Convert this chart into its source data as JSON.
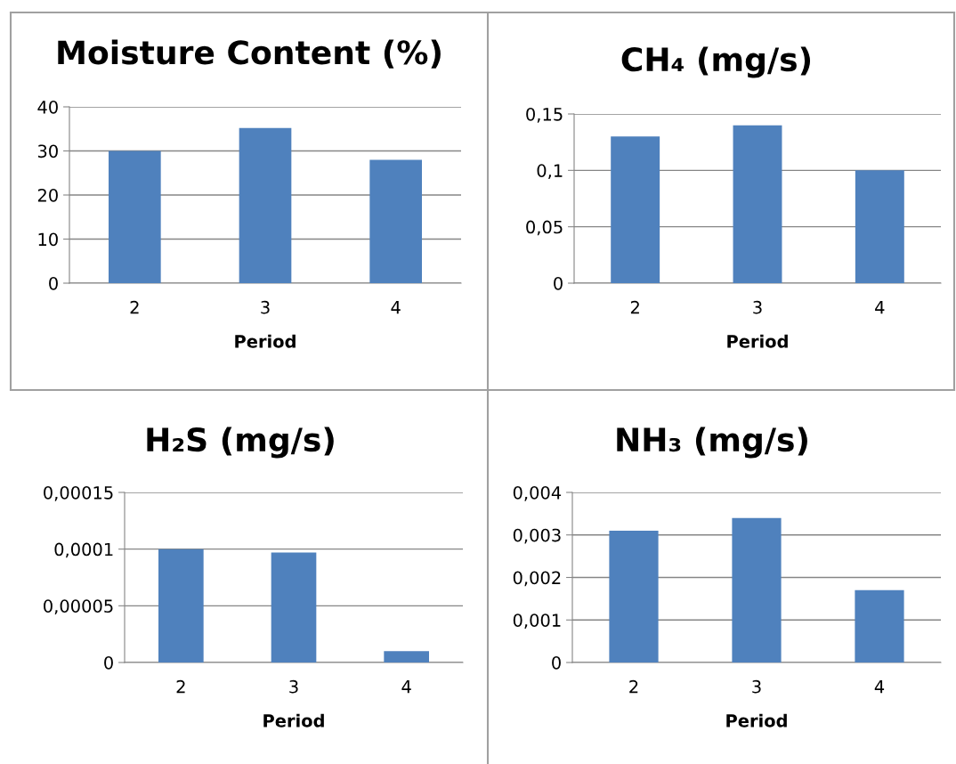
{
  "chart_data": [
    {
      "type": "bar",
      "title": "Moisture Content (%)",
      "xlabel": "Period",
      "categories": [
        "2",
        "3",
        "4"
      ],
      "values": [
        30,
        35.2,
        28
      ],
      "color": "#4f81bd",
      "ylim": [
        0,
        40
      ],
      "yticks": [
        0,
        10,
        20,
        30,
        40
      ],
      "grid": "y"
    },
    {
      "type": "bar",
      "title": "CH₄ (mg/s)",
      "xlabel": "Period",
      "categories": [
        "2",
        "3",
        "4"
      ],
      "values": [
        0.13,
        0.14,
        0.1
      ],
      "color": "#4f81bd",
      "ylim": [
        0,
        0.15
      ],
      "yticks": [
        0,
        {
          "value": 0.05,
          "label": "0,05"
        },
        {
          "value": 0.1,
          "label": "0,1"
        },
        {
          "value": 0.15,
          "label": "0,15"
        }
      ],
      "grid": "y"
    },
    {
      "type": "bar",
      "title": "H₂S (mg/s)",
      "xlabel": "Period",
      "categories": [
        "2",
        "3",
        "4"
      ],
      "values": [
        0.0001,
        9.7e-05,
        1e-05
      ],
      "color": "#4f81bd",
      "ylim": [
        0,
        0.00015
      ],
      "yticks": [
        0,
        {
          "value": 5e-05,
          "label": "0,00005"
        },
        {
          "value": 0.0001,
          "label": "0,0001"
        },
        {
          "value": 0.00015,
          "label": "0,00015"
        }
      ],
      "grid": "y"
    },
    {
      "type": "bar",
      "title": "NH₃ (mg/s)",
      "xlabel": "Period",
      "categories": [
        "2",
        "3",
        "4"
      ],
      "values": [
        0.0031,
        0.0034,
        0.0017
      ],
      "color": "#4f81bd",
      "ylim": [
        0,
        0.004
      ],
      "yticks": [
        0,
        {
          "value": 0.001,
          "label": "0,001"
        },
        {
          "value": 0.002,
          "label": "0,002"
        },
        {
          "value": 0.003,
          "label": "0,003"
        },
        {
          "value": 0.004,
          "label": "0,004"
        }
      ],
      "grid": "y"
    }
  ]
}
